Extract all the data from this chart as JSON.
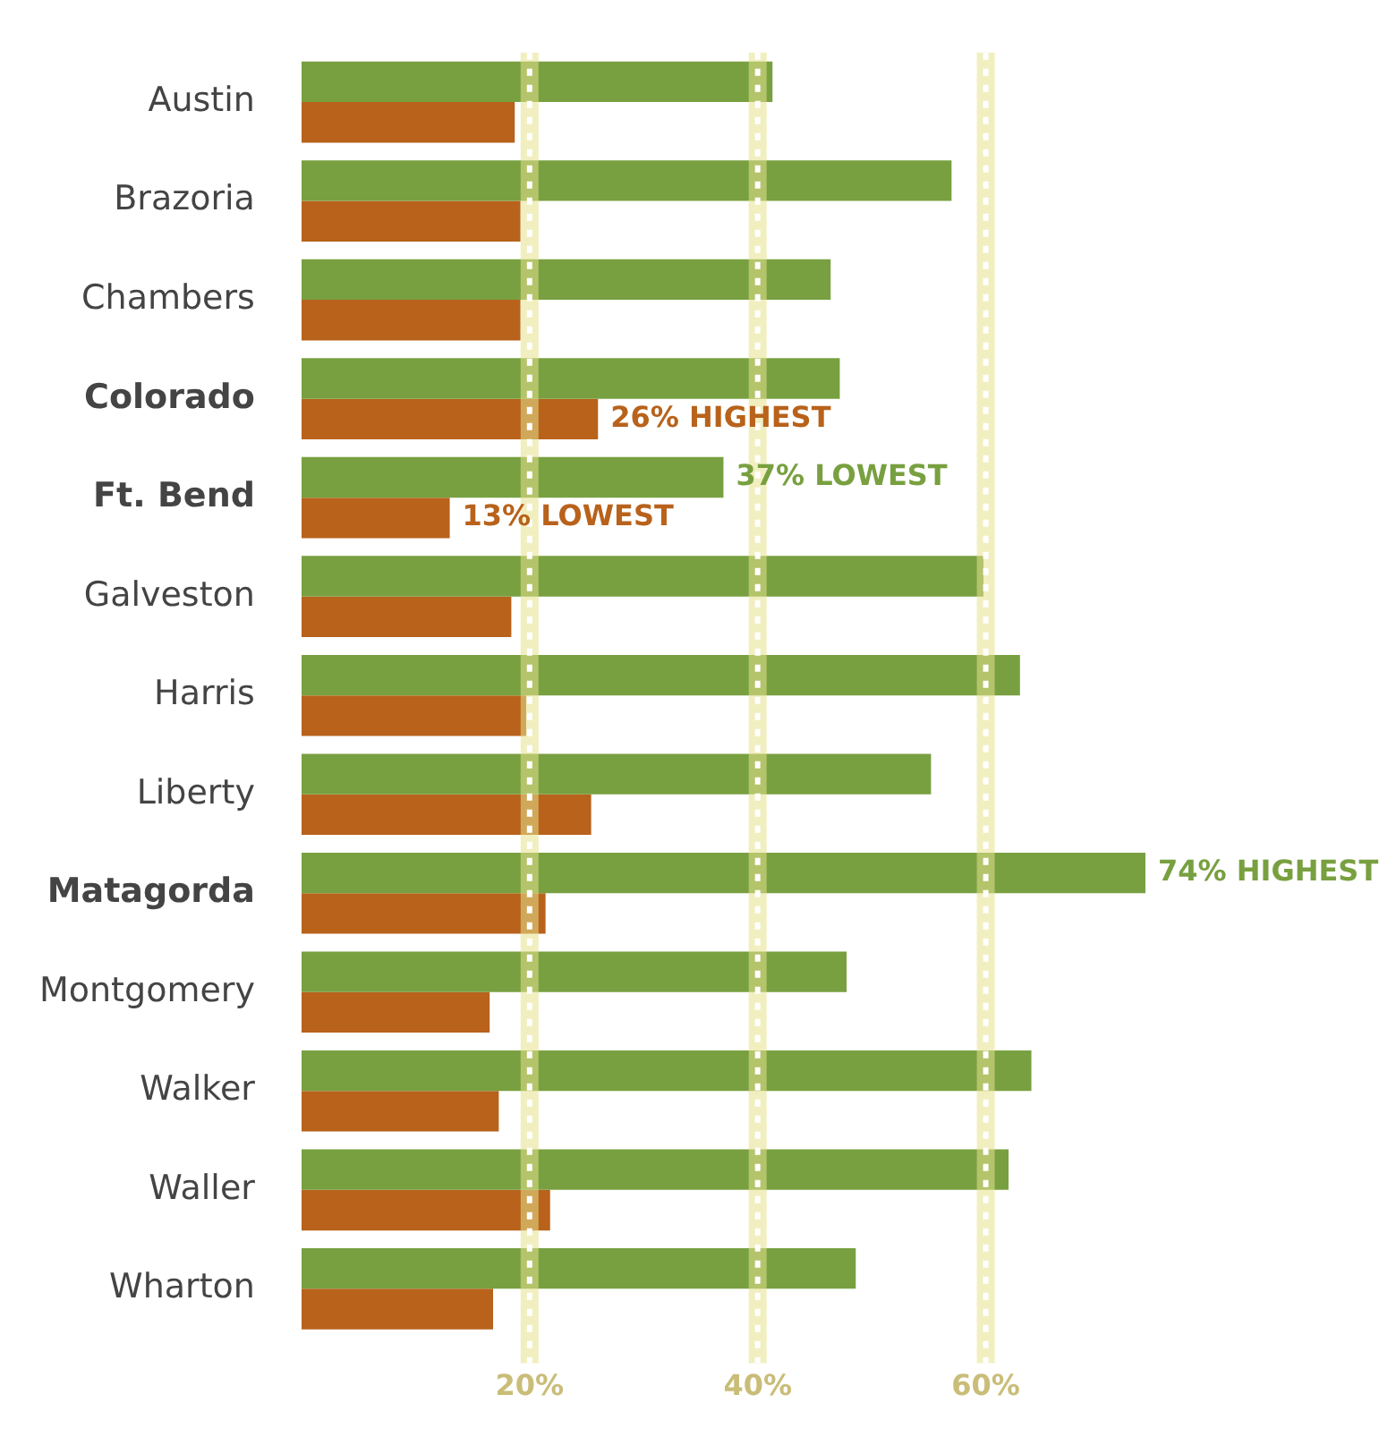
{
  "chart_data": {
    "type": "bar",
    "orientation": "horizontal",
    "categories": [
      "Austin",
      "Brazoria",
      "Chambers",
      "Colorado",
      "Ft. Bend",
      "Galveston",
      "Harris",
      "Liberty",
      "Matagorda",
      "Montgomery",
      "Walker",
      "Waller",
      "Wharton"
    ],
    "series": [
      {
        "color": "#78a040",
        "values": [
          41.3,
          57,
          46.4,
          47.2,
          37,
          59.8,
          63,
          55.2,
          74,
          47.8,
          64,
          62,
          48.6
        ],
        "value_labels": [
          null,
          null,
          null,
          null,
          "37% LOWEST",
          null,
          null,
          null,
          "74% HIGHEST",
          null,
          null,
          null,
          null
        ]
      },
      {
        "color": "#b8621b",
        "values": [
          18.7,
          19.2,
          19.2,
          26,
          13,
          18.4,
          19.7,
          25.4,
          21.4,
          16.5,
          17.3,
          21.8,
          16.8
        ],
        "value_labels": [
          null,
          null,
          null,
          "26% HIGHEST",
          "13% LOWEST",
          null,
          null,
          null,
          null,
          null,
          null,
          null,
          null
        ]
      }
    ],
    "xticks": [
      {
        "value": 20,
        "label": "20%"
      },
      {
        "value": 40,
        "label": "40%"
      },
      {
        "value": 60,
        "label": "60%"
      }
    ],
    "xlim": [
      0,
      74
    ],
    "grid": "x",
    "legend": false
  }
}
